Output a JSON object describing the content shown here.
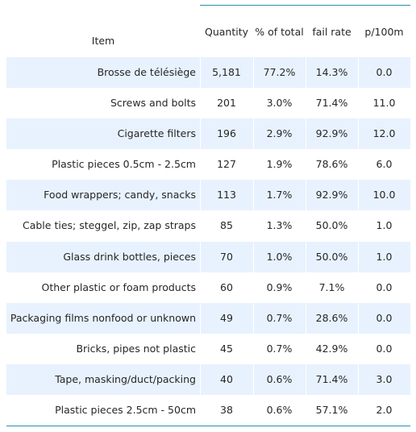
{
  "table": {
    "headers": {
      "item": "Item",
      "quantity": "Quantity",
      "pct_total": "% of total",
      "fail_rate": "fail rate",
      "per_100m": "p/100m"
    },
    "rows": [
      {
        "item": "Brosse de télésiège",
        "quantity": "5,181",
        "pct_total": "77.2%",
        "fail_rate": "14.3%",
        "per_100m": "0.0"
      },
      {
        "item": "Screws and bolts",
        "quantity": "201",
        "pct_total": "3.0%",
        "fail_rate": "71.4%",
        "per_100m": "11.0"
      },
      {
        "item": "Cigarette filters",
        "quantity": "196",
        "pct_total": "2.9%",
        "fail_rate": "92.9%",
        "per_100m": "12.0"
      },
      {
        "item": "Plastic pieces 0.5cm - 2.5cm",
        "quantity": "127",
        "pct_total": "1.9%",
        "fail_rate": "78.6%",
        "per_100m": "6.0"
      },
      {
        "item": "Food wrappers; candy, snacks",
        "quantity": "113",
        "pct_total": "1.7%",
        "fail_rate": "92.9%",
        "per_100m": "10.0"
      },
      {
        "item": "Cable ties; steggel, zip, zap straps",
        "quantity": "85",
        "pct_total": "1.3%",
        "fail_rate": "50.0%",
        "per_100m": "1.0"
      },
      {
        "item": "Glass drink bottles, pieces",
        "quantity": "70",
        "pct_total": "1.0%",
        "fail_rate": "50.0%",
        "per_100m": "1.0"
      },
      {
        "item": "Other plastic or foam products",
        "quantity": "60",
        "pct_total": "0.9%",
        "fail_rate": "7.1%",
        "per_100m": "0.0"
      },
      {
        "item": "Packaging films nonfood or unknown",
        "quantity": "49",
        "pct_total": "0.7%",
        "fail_rate": "28.6%",
        "per_100m": "0.0"
      },
      {
        "item": "Bricks, pipes not plastic",
        "quantity": "45",
        "pct_total": "0.7%",
        "fail_rate": "42.9%",
        "per_100m": "0.0"
      },
      {
        "item": "Tape, masking/duct/packing",
        "quantity": "40",
        "pct_total": "0.6%",
        "fail_rate": "71.4%",
        "per_100m": "3.0"
      },
      {
        "item": "Plastic pieces 2.5cm - 50cm",
        "quantity": "38",
        "pct_total": "0.6%",
        "fail_rate": "57.1%",
        "per_100m": "2.0"
      }
    ]
  },
  "colors": {
    "rule": "#2a8fa8",
    "stripe": "#e8f2fe",
    "text": "#262626"
  }
}
